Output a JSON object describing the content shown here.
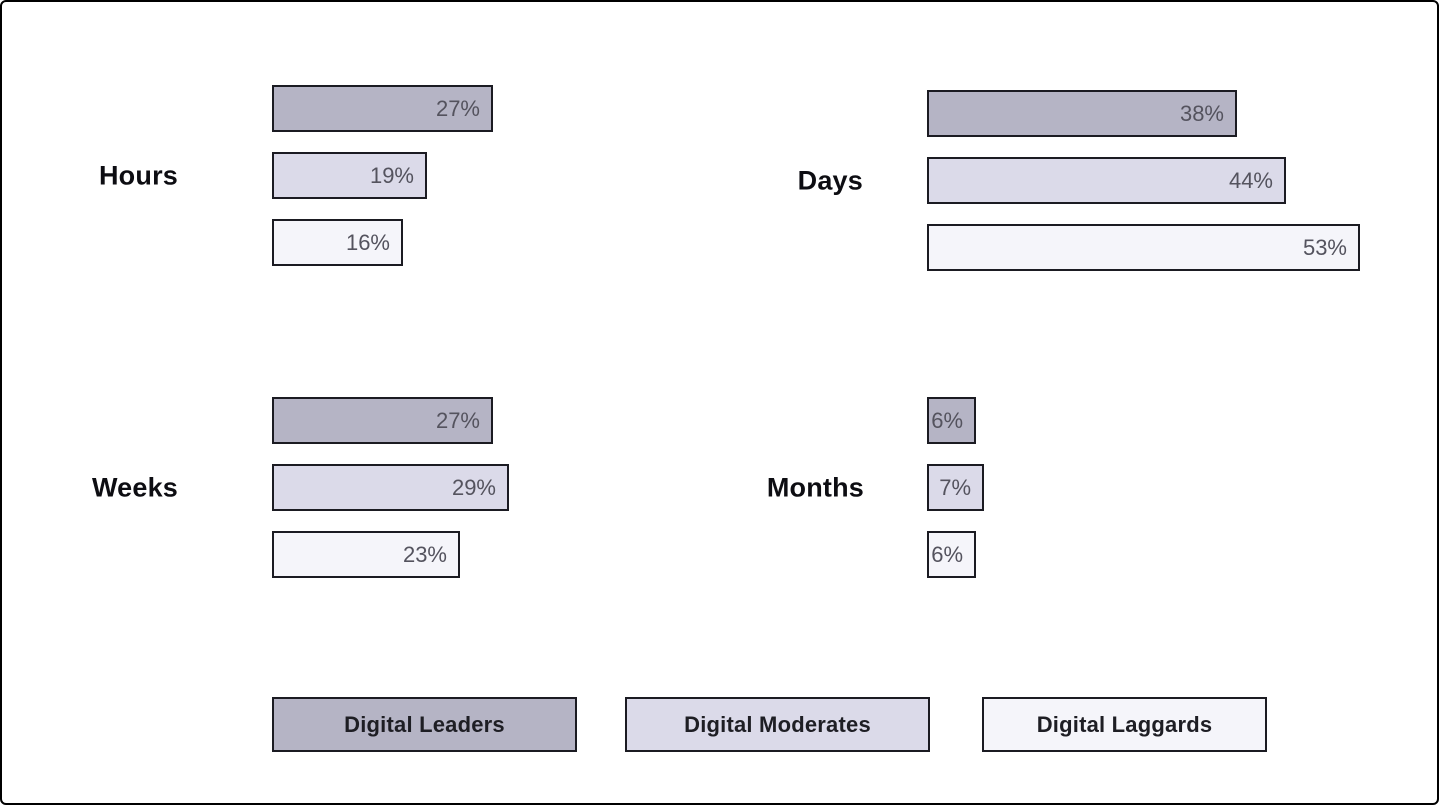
{
  "chart_data": {
    "type": "bar",
    "orientation": "horizontal",
    "title": "",
    "value_suffix": "%",
    "series": [
      "Digital Leaders",
      "Digital Moderates",
      "Digital Laggards"
    ],
    "colors": {
      "Digital Leaders": "#b5b4c5",
      "Digital Moderates": "#dbdae9",
      "Digital Laggards": "#f5f5fa"
    },
    "border_color": "#1b1b22",
    "legend_position": "bottom",
    "groups": [
      {
        "label": "Hours",
        "values": [
          27,
          19,
          16
        ]
      },
      {
        "label": "Days",
        "values": [
          38,
          44,
          53
        ]
      },
      {
        "label": "Weeks",
        "values": [
          27,
          29,
          23
        ]
      },
      {
        "label": "Months",
        "values": [
          6,
          7,
          6
        ]
      }
    ]
  },
  "legend": {
    "items": [
      {
        "label": "Digital Leaders",
        "color": "#b5b4c5"
      },
      {
        "label": "Digital Moderates",
        "color": "#dbdae9"
      },
      {
        "label": "Digital Laggards",
        "color": "#f5f5fa"
      }
    ]
  }
}
